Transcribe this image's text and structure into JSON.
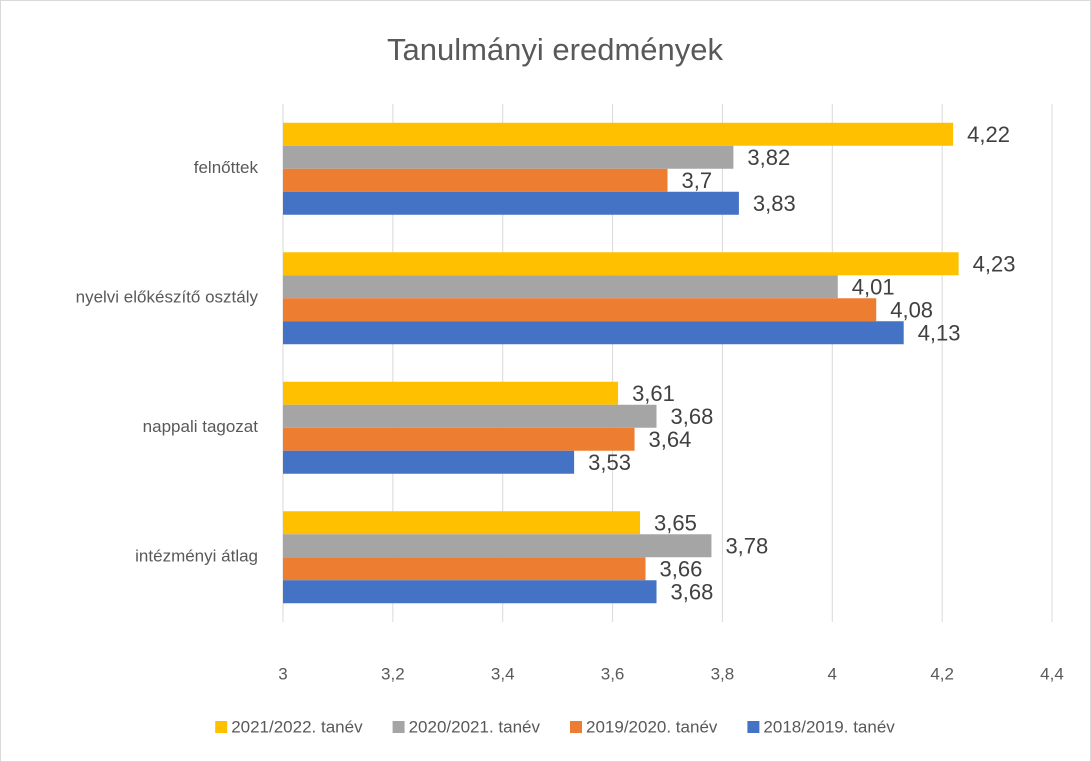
{
  "chart_data": {
    "type": "barh",
    "title": "Tanulmányi eredmények",
    "categories": [
      "felnőttek",
      "nyelvi előkészítő osztály",
      "nappali tagozat",
      "intézményi átlag"
    ],
    "series": [
      {
        "name": "2021/2022. tanév",
        "color": "#ffc000",
        "values": [
          4.22,
          4.23,
          3.61,
          3.65
        ],
        "value_labels": [
          "4,22",
          "4,23",
          "3,61",
          "3,65"
        ]
      },
      {
        "name": "2020/2021. tanév",
        "color": "#a5a5a5",
        "values": [
          3.82,
          4.01,
          3.68,
          3.78
        ],
        "value_labels": [
          "3,82",
          "4,01",
          "3,68",
          "3,78"
        ]
      },
      {
        "name": "2019/2020. tanév",
        "color": "#ed7d31",
        "values": [
          3.7,
          4.08,
          3.64,
          3.66
        ],
        "value_labels": [
          "3,7",
          "4,08",
          "3,64",
          "3,66"
        ]
      },
      {
        "name": "2018/2019. tanév",
        "color": "#4472c4",
        "values": [
          3.83,
          4.13,
          3.53,
          3.68
        ],
        "value_labels": [
          "3,83",
          "4,13",
          "3,53",
          "3,68"
        ]
      }
    ],
    "xlim": [
      3,
      4.4
    ],
    "xticks": [
      3,
      {
        "value": 3.2,
        "label": "3,2"
      },
      {
        "value": 3.4,
        "label": "3,4"
      },
      {
        "value": 3.6,
        "label": "3,6"
      },
      {
        "value": 3.8,
        "label": "3,8"
      },
      4,
      {
        "value": 4.2,
        "label": "4,2"
      },
      {
        "value": 4.4,
        "label": "4,4"
      }
    ],
    "grid": true,
    "legend": "bottom"
  }
}
